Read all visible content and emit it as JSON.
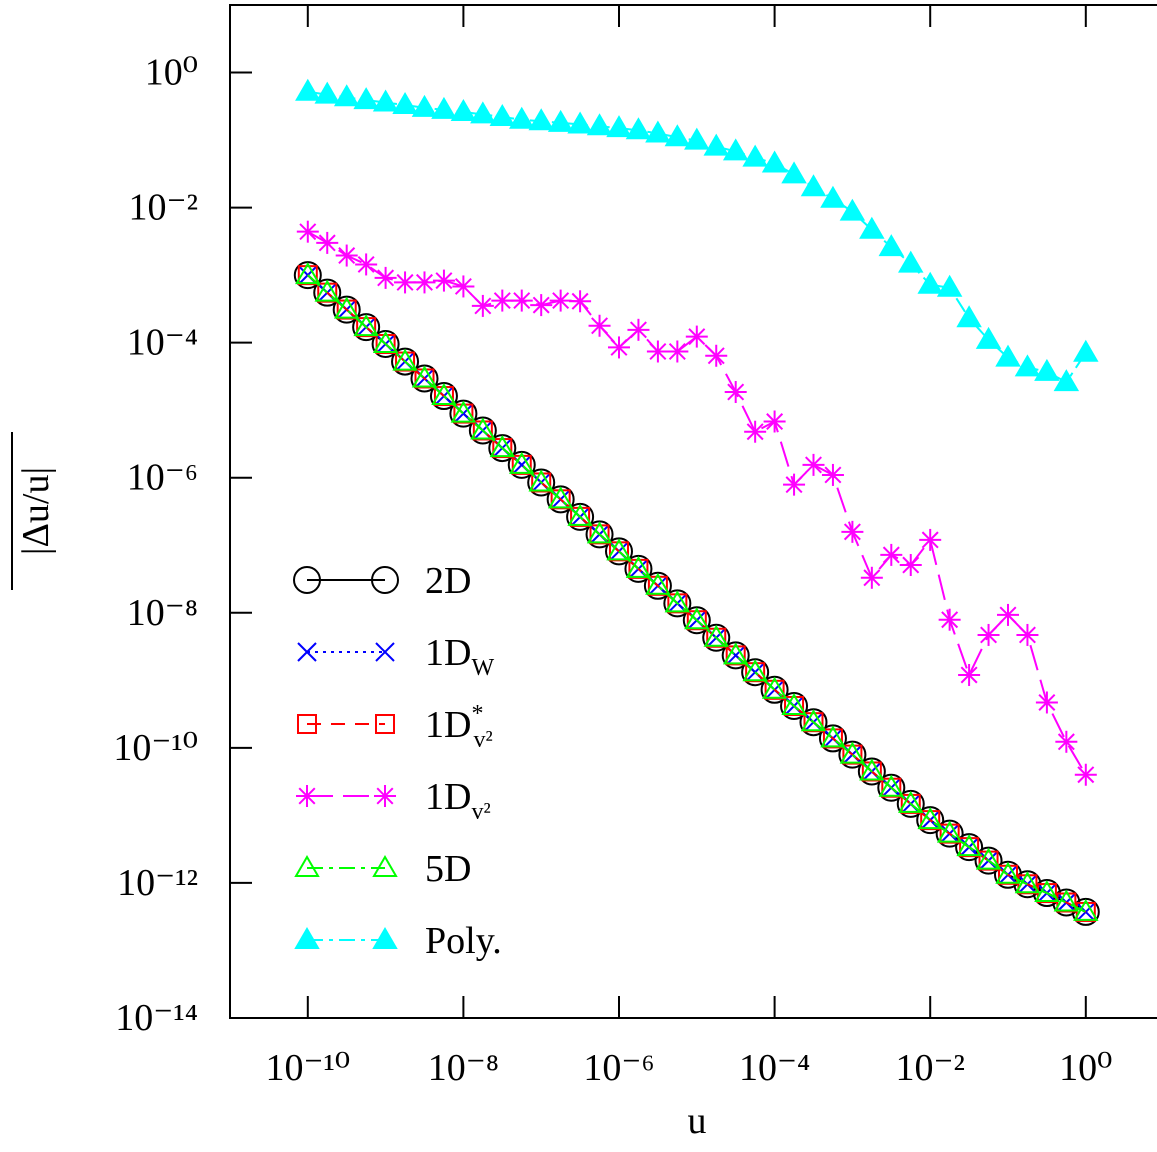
{
  "chart_data": {
    "type": "line",
    "x_label": "u",
    "y_label": "|Δu/u|",
    "log_x": true,
    "log_y": true,
    "xlim": [
      1e-11,
      10.0
    ],
    "ylim": [
      1e-14,
      10.0
    ],
    "xticks": [
      {
        "value": 1e-10,
        "label": "10⁻¹⁰"
      },
      {
        "value": 1e-08,
        "label": "10⁻⁸"
      },
      {
        "value": 1e-06,
        "label": "10⁻⁶"
      },
      {
        "value": 0.0001,
        "label": "10⁻⁴"
      },
      {
        "value": 0.01,
        "label": "10⁻²"
      },
      {
        "value": 1,
        "label": "10⁰"
      }
    ],
    "yticks": [
      {
        "value": 1,
        "label": "10⁰"
      },
      {
        "value": 0.01,
        "label": "10⁻²"
      },
      {
        "value": 0.0001,
        "label": "10⁻⁴"
      },
      {
        "value": 1e-06,
        "label": "10⁻⁶"
      },
      {
        "value": 1e-08,
        "label": "10⁻⁸"
      },
      {
        "value": 1e-10,
        "label": "10⁻¹⁰"
      },
      {
        "value": 1e-12,
        "label": "10⁻¹²"
      },
      {
        "value": 1e-14,
        "label": "10⁻¹⁴"
      }
    ],
    "x": [
      1e-10,
      1.778e-10,
      3.162e-10,
      5.623e-10,
      1e-09,
      1.778e-09,
      3.162e-09,
      5.623e-09,
      1e-08,
      1.778e-08,
      3.162e-08,
      5.623e-08,
      1e-07,
      1.778e-07,
      3.162e-07,
      5.623e-07,
      1e-06,
      1.778e-06,
      3.162e-06,
      5.623e-06,
      1e-05,
      1.778e-05,
      3.162e-05,
      5.623e-05,
      0.0001,
      0.0001778,
      0.0003162,
      0.0005623,
      0.001,
      0.001778,
      0.003162,
      0.005623,
      0.01,
      0.01778,
      0.03162,
      0.05623,
      0.1,
      0.1778,
      0.3162,
      0.5623,
      1
    ],
    "series": [
      {
        "name": "2D",
        "color": "#000000",
        "marker": "circle",
        "dash": "solid",
        "values": [
          0.001,
          0.00055,
          0.000309,
          0.00017,
          9.55e-05,
          5.25e-05,
          2.95e-05,
          1.62e-05,
          8.91e-06,
          5.01e-06,
          2.75e-06,
          1.55e-06,
          8.51e-07,
          4.79e-07,
          2.63e-07,
          1.45e-07,
          8.13e-08,
          4.47e-08,
          2.51e-08,
          1.38e-08,
          7.76e-09,
          4.27e-09,
          2.34e-09,
          1.32e-09,
          7.24e-10,
          4.17e-10,
          2.4e-10,
          1.38e-10,
          7.94e-11,
          4.47e-11,
          2.57e-11,
          1.48e-11,
          8.51e-12,
          5.37e-12,
          3.39e-12,
          2.14e-12,
          1.32e-12,
          9.55e-13,
          7.08e-13,
          5.13e-13,
          3.72e-13
        ]
      },
      {
        "name": "1DW",
        "color": "#0000ff",
        "marker": "cross",
        "dash": "dotted",
        "values": [
          0.001,
          0.00055,
          0.000309,
          0.00017,
          9.55e-05,
          5.25e-05,
          2.95e-05,
          1.62e-05,
          8.91e-06,
          5.01e-06,
          2.75e-06,
          1.55e-06,
          8.51e-07,
          4.79e-07,
          2.63e-07,
          1.45e-07,
          8.13e-08,
          4.47e-08,
          2.51e-08,
          1.38e-08,
          7.76e-09,
          4.27e-09,
          2.34e-09,
          1.32e-09,
          7.24e-10,
          4.17e-10,
          2.4e-10,
          1.38e-10,
          7.94e-11,
          4.47e-11,
          2.57e-11,
          1.48e-11,
          8.51e-12,
          5.37e-12,
          3.39e-12,
          2.14e-12,
          1.32e-12,
          9.55e-13,
          7.08e-13,
          5.13e-13,
          3.72e-13
        ]
      },
      {
        "name": "1D*v²",
        "color": "#ff0000",
        "marker": "square",
        "dash": "dashed",
        "values": [
          0.001,
          0.00055,
          0.000309,
          0.00017,
          9.55e-05,
          5.25e-05,
          2.95e-05,
          1.62e-05,
          8.91e-06,
          5.01e-06,
          2.75e-06,
          1.55e-06,
          8.51e-07,
          4.79e-07,
          2.63e-07,
          1.45e-07,
          8.13e-08,
          4.47e-08,
          2.51e-08,
          1.38e-08,
          7.76e-09,
          4.27e-09,
          2.34e-09,
          1.32e-09,
          7.24e-10,
          4.17e-10,
          2.4e-10,
          1.38e-10,
          7.94e-11,
          4.47e-11,
          2.57e-11,
          1.48e-11,
          8.51e-12,
          5.37e-12,
          3.39e-12,
          2.14e-12,
          1.32e-12,
          9.55e-13,
          7.08e-13,
          5.13e-13,
          3.72e-13
        ]
      },
      {
        "name": "1Dv²",
        "color": "#ff00ff",
        "marker": "asterisk",
        "dash": "longdash",
        "values": [
          0.0044,
          0.003,
          0.00195,
          0.00144,
          0.00091,
          0.00078,
          0.00078,
          0.00083,
          0.00068,
          0.00035,
          0.00042,
          0.00042,
          0.00036,
          0.00042,
          0.00041,
          0.000178,
          8.5e-05,
          0.000155,
          7.4e-05,
          7.4e-05,
          0.000123,
          6.4e-05,
          1.86e-05,
          4.8e-06,
          6.8e-06,
          7.9e-07,
          1.55e-06,
          1.1e-06,
          1.58e-07,
          3.3e-08,
          7.2e-08,
          5.1e-08,
          1.2e-07,
          7.9e-09,
          1.2e-09,
          4.7e-09,
          9.3e-09,
          4.7e-09,
          4.7e-10,
          1.23e-10,
          4e-11
        ]
      },
      {
        "name": "5D",
        "color": "#00ff00",
        "marker": "triangle",
        "dash": "dashdot",
        "values": [
          0.001,
          0.00055,
          0.000309,
          0.00017,
          9.55e-05,
          5.25e-05,
          2.95e-05,
          1.62e-05,
          8.91e-06,
          5.01e-06,
          2.75e-06,
          1.55e-06,
          8.51e-07,
          4.79e-07,
          2.63e-07,
          1.45e-07,
          8.13e-08,
          4.47e-08,
          2.51e-08,
          1.38e-08,
          7.76e-09,
          4.27e-09,
          2.34e-09,
          1.32e-09,
          7.24e-10,
          4.17e-10,
          2.4e-10,
          1.38e-10,
          7.94e-11,
          4.47e-11,
          2.57e-11,
          1.48e-11,
          8.51e-12,
          5.37e-12,
          3.39e-12,
          2.14e-12,
          1.32e-12,
          9.55e-13,
          7.08e-13,
          5.13e-13,
          3.72e-13
        ]
      },
      {
        "name": "Poly.",
        "color": "#00ffff",
        "marker": "filled-triangle",
        "dash": "dashdot",
        "values": [
          0.52,
          0.47,
          0.43,
          0.39,
          0.36,
          0.33,
          0.3,
          0.28,
          0.26,
          0.24,
          0.22,
          0.2,
          0.19,
          0.18,
          0.17,
          0.16,
          0.15,
          0.14,
          0.125,
          0.11,
          0.098,
          0.08,
          0.068,
          0.055,
          0.045,
          0.031,
          0.02,
          0.0135,
          0.0087,
          0.0047,
          0.0026,
          0.00148,
          0.00072,
          0.00065,
          0.00023,
          0.00011,
          6e-05,
          4.3e-05,
          3.7e-05,
          2.6e-05,
          7.1e-05
        ]
      }
    ]
  }
}
